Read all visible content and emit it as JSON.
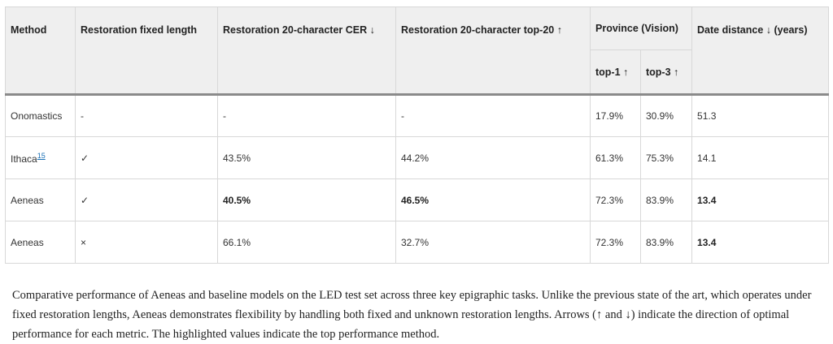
{
  "table": {
    "headers": {
      "method": "Method",
      "fixed_length": "Restoration fixed length",
      "cer": "Restoration 20-character CER ↓",
      "top20": "Restoration 20-character top-20 ↑",
      "province": "Province (Vision)",
      "top1": "top-1 ↑",
      "top3": "top-3 ↑",
      "date": "Date distance ↓ (years)"
    },
    "rows": [
      {
        "method": "Onomastics",
        "ref": "",
        "fixed": "-",
        "cer": "-",
        "top20": "-",
        "top1": "17.9%",
        "top3": "30.9%",
        "date": "51.3"
      },
      {
        "method": "Ithaca",
        "ref": "15",
        "fixed": "✓",
        "cer": "43.5%",
        "top20": "44.2%",
        "top1": "61.3%",
        "top3": "75.3%",
        "date": "14.1"
      },
      {
        "method": "Aeneas",
        "ref": "",
        "fixed": "✓",
        "cer": "40.5%",
        "top20": "46.5%",
        "top1": "72.3%",
        "top3": "83.9%",
        "date": "13.4"
      },
      {
        "method": "Aeneas",
        "ref": "",
        "fixed": "×",
        "cer": "66.1%",
        "top20": "32.7%",
        "top1": "72.3%",
        "top3": "83.9%",
        "date": "13.4"
      }
    ]
  },
  "caption": "Comparative performance of Aeneas and baseline models on the LED test set across three key epigraphic tasks. Unlike the previous state of the art, which operates under fixed restoration lengths, Aeneas demonstrates flexibility by handling both fixed and unknown restoration lengths. Arrows (↑ and ↓) indicate the direction of optimal performance for each metric. The highlighted values indicate the top performance method."
}
